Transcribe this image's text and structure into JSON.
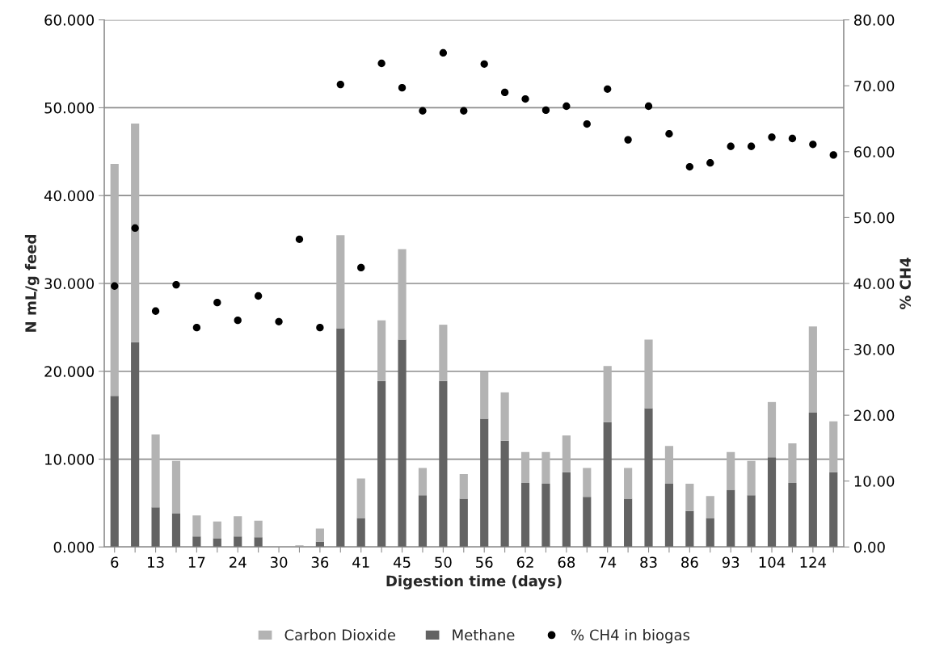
{
  "chart_data": {
    "type": "bar",
    "stacked": true,
    "xlabel": "Digestion time (days)",
    "ylabel": "N mL/g feed",
    "y2label": "% CH4",
    "categories": [
      "6",
      null,
      "13",
      null,
      "17",
      null,
      "24",
      null,
      "30",
      null,
      "36",
      null,
      "41",
      null,
      "45",
      null,
      "50",
      null,
      "56",
      null,
      "62",
      null,
      "68",
      null,
      "74",
      null,
      "83",
      null,
      "86",
      null,
      "93",
      null,
      "104",
      null,
      "124",
      null
    ],
    "series": [
      {
        "name": "Methane",
        "color": "#636363",
        "values": [
          17.2,
          23.3,
          4.5,
          3.8,
          1.2,
          1.0,
          1.2,
          1.1,
          0,
          0,
          0.6,
          24.9,
          3.3,
          18.9,
          23.6,
          5.9,
          18.9,
          5.5,
          14.6,
          12.1,
          7.3,
          7.2,
          8.5,
          5.7,
          14.2,
          5.5,
          15.8,
          7.2,
          4.1,
          3.3,
          6.5,
          5.9,
          10.2,
          7.3,
          15.3,
          8.5
        ]
      },
      {
        "name": "Carbon Dioxide",
        "color": "#b3b3b3",
        "values": [
          26.4,
          24.9,
          8.3,
          6.0,
          2.4,
          1.9,
          2.3,
          1.9,
          0,
          0.2,
          1.5,
          10.6,
          4.5,
          6.9,
          10.3,
          3.1,
          6.4,
          2.8,
          5.4,
          5.5,
          3.5,
          3.6,
          4.2,
          3.3,
          6.4,
          3.5,
          7.8,
          4.3,
          3.1,
          2.5,
          4.3,
          3.9,
          6.3,
          4.5,
          9.8,
          5.8
        ]
      },
      {
        "name": "% CH4 in biogas",
        "type": "scatter",
        "axis": "y2",
        "color": "#000000",
        "marker": "circle",
        "values": [
          39.6,
          48.4,
          35.8,
          39.8,
          33.3,
          37.1,
          34.4,
          38.1,
          34.2,
          46.7,
          33.3,
          70.2,
          42.4,
          73.4,
          69.7,
          66.2,
          75.0,
          66.2,
          73.3,
          69.0,
          68.0,
          66.3,
          66.9,
          64.2,
          69.5,
          61.8,
          66.9,
          62.7,
          57.7,
          58.3,
          60.8,
          60.8,
          62.2,
          62.0,
          61.1,
          59.5
        ]
      }
    ],
    "ylim": [
      0,
      60
    ],
    "yticks": [
      {
        "value": 0,
        "label": "0.000"
      },
      {
        "value": 10,
        "label": "10.000"
      },
      {
        "value": 20,
        "label": "20.000"
      },
      {
        "value": 30,
        "label": "30.000"
      },
      {
        "value": 40,
        "label": "40.000"
      },
      {
        "value": 50,
        "label": "50.000"
      },
      {
        "value": 60,
        "label": "60.000"
      }
    ],
    "y2lim": [
      0,
      80
    ],
    "y2ticks": [
      {
        "value": 0,
        "label": "0.00"
      },
      {
        "value": 10,
        "label": "10.00"
      },
      {
        "value": 20,
        "label": "20.00"
      },
      {
        "value": 30,
        "label": "30.00"
      },
      {
        "value": 40,
        "label": "40.00"
      },
      {
        "value": 50,
        "label": "50.00"
      },
      {
        "value": 60,
        "label": "60.00"
      },
      {
        "value": 70,
        "label": "70.00"
      },
      {
        "value": 80,
        "label": "80.00"
      }
    ],
    "grid": "y",
    "legend": "bottom"
  }
}
